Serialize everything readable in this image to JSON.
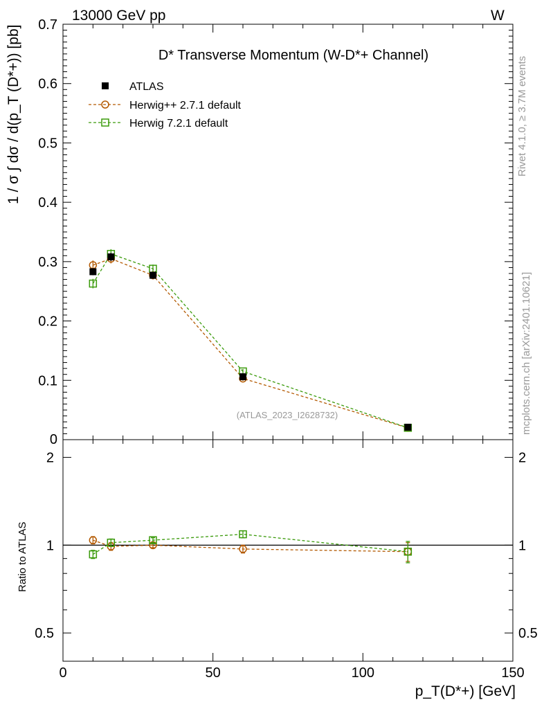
{
  "header": {
    "left": "13000 GeV pp",
    "right": "W"
  },
  "side_text": {
    "rivet": "Rivet 4.1.0, ≥ 3.7M events",
    "mcplots": "mcplots.cern.ch [arXiv:2401.10621]"
  },
  "watermark": "(ATLAS_2023_I2628732)",
  "chart_data": {
    "type": "line",
    "title": "D* Transverse Momentum (W-D*+ Channel)",
    "xlabel": "p_T(D*+) [GeV]",
    "ylabel": "1 / σ ∫ dσ / d(p_T (D*+)) [pb]",
    "ratio_ylabel": "Ratio to ATLAS",
    "xlim": [
      0,
      150
    ],
    "ylim": [
      0,
      0.7
    ],
    "ratio_ylim": [
      0.4,
      2.3
    ],
    "x_ticks": [
      0,
      50,
      100,
      150
    ],
    "y_ticks": [
      0.1,
      0.2,
      0.3,
      0.4,
      0.5,
      0.6,
      0.7
    ],
    "y_tick_labels": [
      "0.1",
      "0.2",
      "0.3",
      "0.4",
      "0.5",
      "0.6",
      "0.7"
    ],
    "y_zero_label": "0",
    "ratio_ticks": [
      0.5,
      1,
      2
    ],
    "ratio_tick_labels": [
      "0.5",
      "1",
      "2"
    ],
    "x": [
      10,
      16,
      30,
      60,
      115
    ],
    "series": [
      {
        "name": "ATLAS",
        "color": "#000000",
        "marker": "filled-square",
        "values": [
          0.283,
          0.308,
          0.277,
          0.106,
          0.021
        ],
        "errors": [
          0.006,
          0.007,
          0.006,
          0.004,
          0.002
        ]
      },
      {
        "name": "Herwig++ 2.7.1 default",
        "color": "#b35900",
        "marker": "open-circle",
        "values": [
          0.294,
          0.305,
          0.277,
          0.103,
          0.02
        ],
        "errors": [
          0.008,
          0.008,
          0.007,
          0.004,
          0.001
        ],
        "ratio": [
          1.04,
          0.99,
          1.0,
          0.97,
          0.95
        ],
        "ratio_errors": [
          0.03,
          0.03,
          0.02,
          0.03,
          0.07
        ]
      },
      {
        "name": "Herwig 7.2.1 default",
        "color": "#3a9a0a",
        "marker": "open-square",
        "values": [
          0.263,
          0.313,
          0.288,
          0.115,
          0.02
        ],
        "errors": [
          0.008,
          0.008,
          0.007,
          0.004,
          0.001
        ],
        "ratio": [
          0.93,
          1.02,
          1.04,
          1.09,
          0.95
        ],
        "ratio_errors": [
          0.03,
          0.03,
          0.02,
          0.03,
          0.08
        ]
      }
    ]
  }
}
